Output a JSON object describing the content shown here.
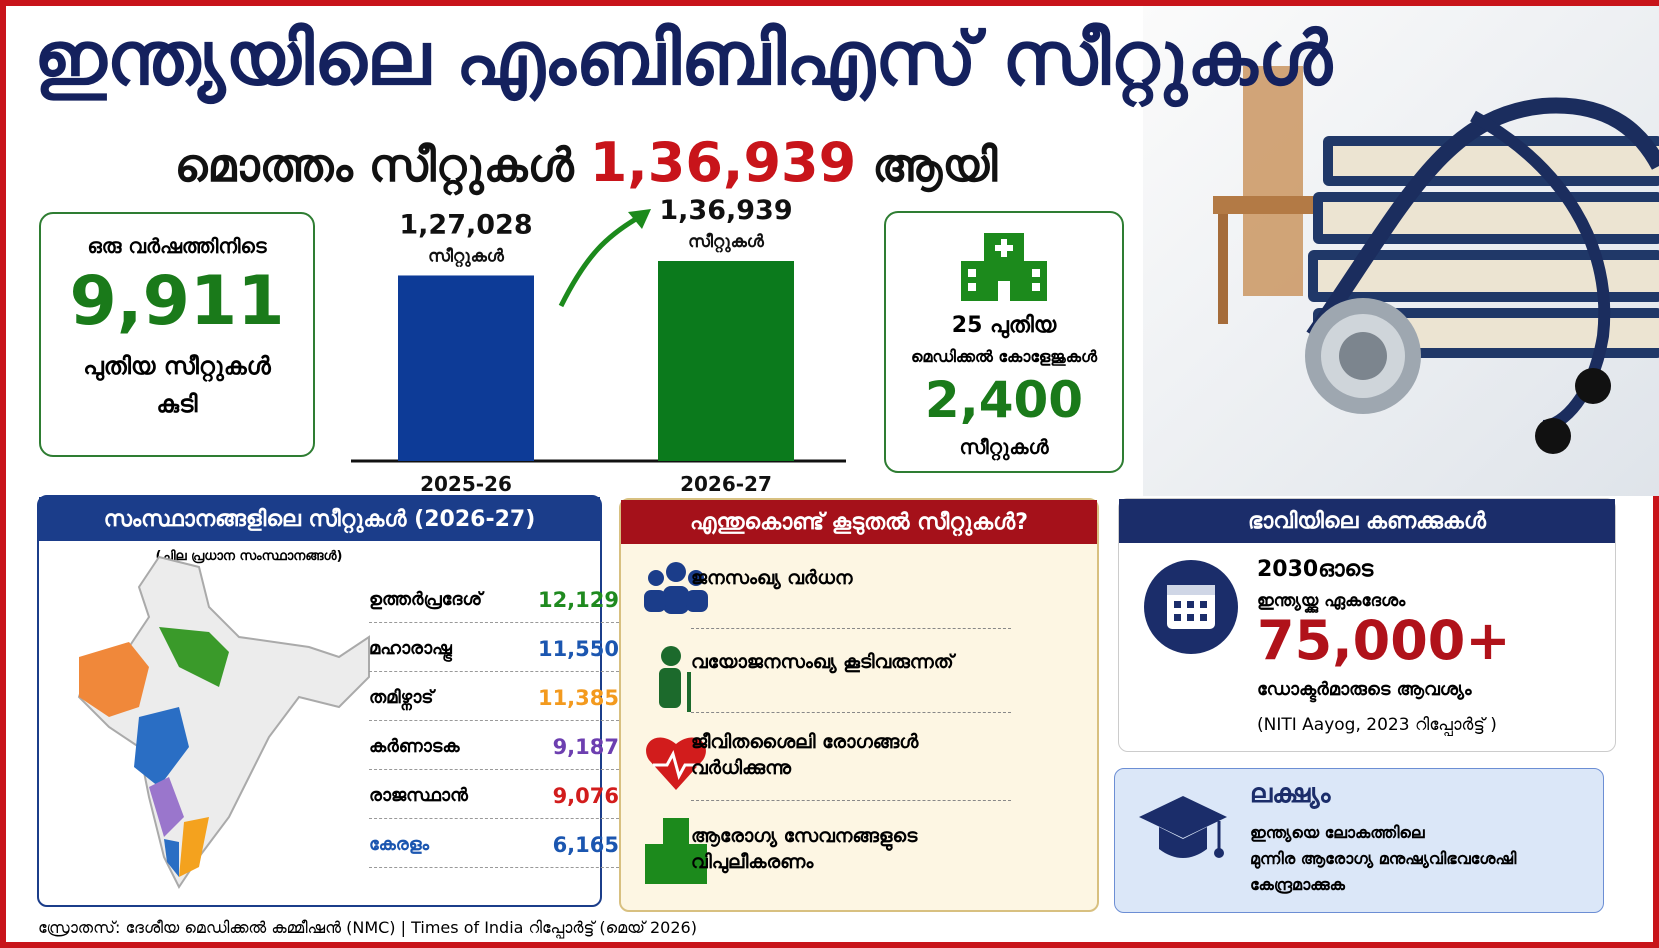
{
  "header": {
    "title": "ഇന്ത്യയിലെ എംബിബിഎസ് സീറ്റുകൾ",
    "subtitle_prefix": "മൊത്തം സീറ്റുകൾ",
    "subtitle_total": "1,36,939",
    "subtitle_suffix": "ആയി"
  },
  "growth": {
    "label": "ഒരു വർഷത്തിനിടെ",
    "value": "9,911",
    "line1": "പുതിയ സീറ്റുകൾ",
    "line2": "കുടി"
  },
  "chart_data": {
    "type": "bar",
    "categories": [
      "2025-26",
      "2026-27"
    ],
    "values": [
      127028,
      136939
    ],
    "value_labels": [
      "1,27,028",
      "1,36,939"
    ],
    "value_unit": "സീറ്റുകൾ",
    "colors": [
      "#0d3b97",
      "#0b7a1c"
    ]
  },
  "new_colleges": {
    "line1": "25 പുതിയ",
    "line2": "മെഡിക്കൽ കോളേജുകൾ",
    "value": "2,400",
    "line3": "സീറ്റുകൾ"
  },
  "states": {
    "title": "സംസ്ഥാനങ്ങളിലെ സീറ്റുകൾ (2026-27)",
    "subtitle": "(ചില പ്രധാന സംസ്ഥാനങ്ങൾ)",
    "rows": [
      {
        "name": "ഉത്തർപ്രദേശ്",
        "value": "12,129",
        "color": "#1f8a1f"
      },
      {
        "name": "മഹാരാഷ്ട്ര",
        "value": "11,550",
        "color": "#1b56b0"
      },
      {
        "name": "തമിഴ്നാട്",
        "value": "11,385",
        "color": "#f39a1e"
      },
      {
        "name": "കർണാടക",
        "value": "9,187",
        "color": "#6d3fb0"
      },
      {
        "name": "രാജസ്ഥാൻ",
        "value": "9,076",
        "color": "#d21c1c"
      },
      {
        "name": "കേരളം",
        "value": "6,165",
        "color": "#1b56b0"
      }
    ]
  },
  "reasons": {
    "title": "എന്തുകൊണ്ട് കൂടുതൽ സീറ്റുകൾ?",
    "items": [
      "ജനസംഖ്യ വർധന",
      "വയോജനസംഖ്യ കൂടിവരുന്നത്",
      "ജീവിതശൈലി രോഗങ്ങൾ വർധിക്കുന്നു",
      "ആരോഗ്യ സേവനങ്ങളുടെ വിപുലീകരണം"
    ]
  },
  "future": {
    "title": "ഭാവിയിലെ കണക്കുകൾ",
    "line1": "2030ഓടെ",
    "line2": "ഇന്ത്യയ്ക്കു ഏകദേശം",
    "value": "75,000+",
    "line3": "ഡോക്ടർമാരുടെ ആവശ്യം",
    "note": "(NITI Aayog, 2023 റിപ്പോർട്ട് )"
  },
  "goal": {
    "title": "ലക്ഷ്യം",
    "line1": "ഇന്ത്യയെ ലോകത്തിലെ",
    "line2": "മുന്നിര ആരോഗ്യ മനുഷ്യവിഭവശേഷി",
    "line3": "കേന്ദ്രമാക്കുക"
  },
  "source": "സ്രോതസ്: ദേശീയ മെഡിക്കൽ കമ്മീഷൻ (NMC)  |  Times of India റിപ്പോർട്ട് (മെയ് 2026)"
}
